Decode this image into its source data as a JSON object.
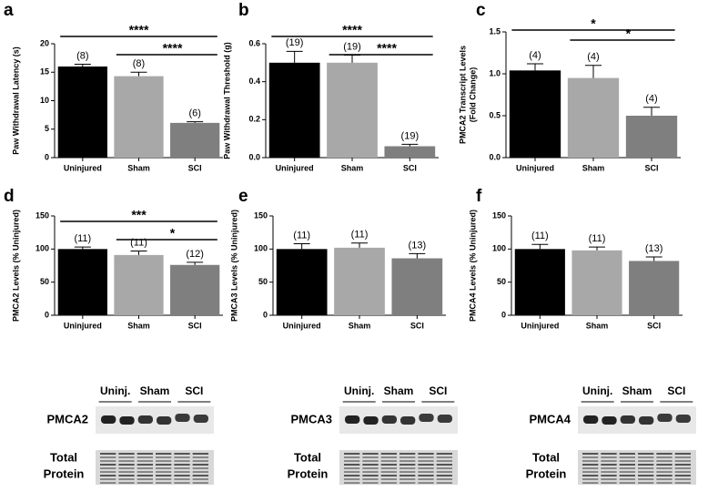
{
  "chart_data": [
    {
      "type": "bar",
      "panel": "a",
      "ylabel": "Paw Withdrawal Latency (s)",
      "categories": [
        "Uninjured",
        "Sham",
        "SCI"
      ],
      "values": [
        16,
        14.3,
        6.1
      ],
      "errors": [
        0.4,
        0.7,
        0.2
      ],
      "n_labels": [
        "(8)",
        "(8)",
        "(6)"
      ],
      "colors": [
        "#000000",
        "#a8a8a8",
        "#7f7f7f"
      ],
      "ylim": [
        0,
        20
      ],
      "yticks": [
        0,
        5,
        10,
        15,
        20
      ],
      "significance": [
        {
          "pair": [
            0,
            2
          ],
          "label": "****"
        },
        {
          "pair": [
            1,
            2
          ],
          "label": "****"
        }
      ]
    },
    {
      "type": "bar",
      "panel": "b",
      "ylabel": "Paw Withdrawal Threshold (g)",
      "categories": [
        "Uninjured",
        "Sham",
        "SCI"
      ],
      "values": [
        0.5,
        0.5,
        0.06
      ],
      "errors": [
        0.06,
        0.04,
        0.01
      ],
      "n_labels": [
        "(19)",
        "(19)",
        "(19)"
      ],
      "colors": [
        "#000000",
        "#a8a8a8",
        "#7f7f7f"
      ],
      "ylim": [
        0,
        0.6
      ],
      "yticks": [
        {
          "value": 0,
          "label": "0.0"
        },
        0.2,
        0.4,
        0.6
      ],
      "significance": [
        {
          "pair": [
            0,
            2
          ],
          "label": "****"
        },
        {
          "pair": [
            1,
            2
          ],
          "label": "****"
        }
      ]
    },
    {
      "type": "bar",
      "panel": "c",
      "ylabel": [
        "PMCA2 Transcript Levels",
        "(Fold  Change)"
      ],
      "categories": [
        "Uninjured",
        "Sham",
        "SCI"
      ],
      "values": [
        1.04,
        0.95,
        0.5
      ],
      "errors": [
        0.08,
        0.15,
        0.1
      ],
      "n_labels": [
        "(4)",
        "(4)",
        "(4)"
      ],
      "colors": [
        "#000000",
        "#a8a8a8",
        "#7f7f7f"
      ],
      "ylim": [
        0,
        1.5
      ],
      "yticks": [
        {
          "value": 0,
          "label": "0.0"
        },
        0.5,
        {
          "value": 1,
          "label": "1.0"
        },
        1.5
      ],
      "significance": [
        {
          "pair": [
            0,
            2
          ],
          "label": "*"
        },
        {
          "pair": [
            1,
            2
          ],
          "label": "*"
        }
      ]
    },
    {
      "type": "bar",
      "panel": "d",
      "ylabel": "PMCA2 Levels (% Uninjured)",
      "categories": [
        "Uninjured",
        "Sham",
        "SCI"
      ],
      "values": [
        100,
        91,
        76
      ],
      "errors": [
        3,
        6,
        4
      ],
      "n_labels": [
        "(11)",
        "(11)",
        "(12)"
      ],
      "colors": [
        "#000000",
        "#a8a8a8",
        "#7f7f7f"
      ],
      "ylim": [
        0,
        150
      ],
      "yticks": [
        0,
        50,
        100,
        150
      ],
      "significance": [
        {
          "pair": [
            0,
            2
          ],
          "label": "***"
        },
        {
          "pair": [
            1,
            2
          ],
          "label": "*"
        }
      ]
    },
    {
      "type": "bar",
      "panel": "e",
      "ylabel": "PMCA3  Levels (% Uninjured)",
      "categories": [
        "Uninjured",
        "Sham",
        "SCI"
      ],
      "values": [
        100,
        102,
        86
      ],
      "errors": [
        8,
        7,
        7
      ],
      "n_labels": [
        "(11)",
        "(11)",
        "(13)"
      ],
      "colors": [
        "#000000",
        "#a8a8a8",
        "#7f7f7f"
      ],
      "ylim": [
        0,
        150
      ],
      "yticks": [
        0,
        50,
        100,
        150
      ],
      "significance": []
    },
    {
      "type": "bar",
      "panel": "f",
      "ylabel": "PMCA4  Levels (% Uninjured)",
      "categories": [
        "Uninjured",
        "Sham",
        "SCI"
      ],
      "values": [
        100,
        98,
        82
      ],
      "errors": [
        7,
        5,
        6
      ],
      "n_labels": [
        "(11)",
        "(11)",
        "(13)"
      ],
      "colors": [
        "#000000",
        "#a8a8a8",
        "#7f7f7f"
      ],
      "ylim": [
        0,
        150
      ],
      "yticks": [
        0,
        50,
        100,
        150
      ],
      "significance": []
    }
  ],
  "blots": [
    {
      "protein": "PMCA2",
      "groups": [
        "Uninj.",
        "Sham",
        "SCI"
      ],
      "loading": [
        "Total",
        "Protein"
      ]
    },
    {
      "protein": "PMCA3",
      "groups": [
        "Uninj.",
        "Sham",
        "SCI"
      ],
      "loading": [
        "Total",
        "Protein"
      ]
    },
    {
      "protein": "PMCA4",
      "groups": [
        "Uninj.",
        "Sham",
        "SCI"
      ],
      "loading": [
        "Total",
        "Protein"
      ]
    }
  ]
}
